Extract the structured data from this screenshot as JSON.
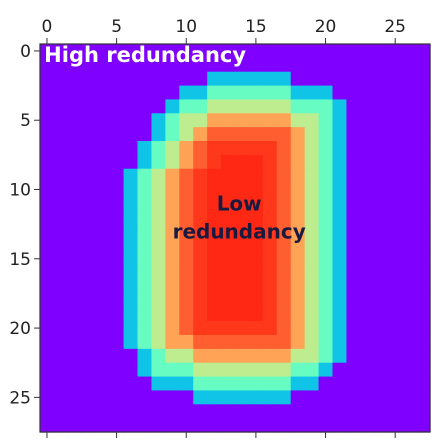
{
  "chart_data": {
    "type": "heatmap",
    "rows": 28,
    "cols": 28,
    "x_ticks": [
      0,
      5,
      10,
      15,
      20,
      25
    ],
    "y_ticks": [
      0,
      5,
      10,
      15,
      20,
      25
    ],
    "x_tick_position": "top",
    "colormap": "rainbow",
    "value_range": [
      0,
      1
    ],
    "background_value": 0,
    "annotations": [
      {
        "text": "High redundancy",
        "row": 0.8,
        "col": -0.2,
        "anchor": "start",
        "color": "#ffffff"
      },
      {
        "lines": [
          "Low",
          "redundancy"
        ],
        "row": 11.5,
        "col": 13.8,
        "anchor": "middle",
        "color": "#1a1a40"
      }
    ],
    "row_profile": [
      {
        "row": 0,
        "left": 0,
        "right": 0
      },
      {
        "row": 1,
        "left": 0,
        "right": 0
      },
      {
        "row": 2,
        "left": 12.5,
        "right": 17.5
      },
      {
        "row": 3,
        "left": 10.5,
        "right": 20.5
      },
      {
        "row": 4,
        "left": 9,
        "right": 21.5
      },
      {
        "row": 5,
        "left": 8.5,
        "right": 22
      },
      {
        "row": 6,
        "left": 8,
        "right": 22
      },
      {
        "row": 7,
        "left": 7.5,
        "right": 22
      },
      {
        "row": 8,
        "left": 7,
        "right": 22
      },
      {
        "row": 9,
        "left": 6.5,
        "right": 22
      },
      {
        "row": 10,
        "left": 6.5,
        "right": 22
      },
      {
        "row": 11,
        "left": 6.5,
        "right": 22
      },
      {
        "row": 12,
        "left": 6.5,
        "right": 22
      },
      {
        "row": 13,
        "left": 6.5,
        "right": 22
      },
      {
        "row": 14,
        "left": 6.5,
        "right": 22
      },
      {
        "row": 15,
        "left": 6.5,
        "right": 22
      },
      {
        "row": 16,
        "left": 6.5,
        "right": 22
      },
      {
        "row": 17,
        "left": 6.5,
        "right": 22
      },
      {
        "row": 18,
        "left": 6.5,
        "right": 22
      },
      {
        "row": 19,
        "left": 6.5,
        "right": 22
      },
      {
        "row": 20,
        "left": 6.5,
        "right": 22
      },
      {
        "row": 21,
        "left": 6.5,
        "right": 22
      },
      {
        "row": 22,
        "left": 7,
        "right": 21.5
      },
      {
        "row": 23,
        "left": 7.5,
        "right": 21
      },
      {
        "row": 24,
        "left": 8.5,
        "right": 20
      },
      {
        "row": 25,
        "left": 11,
        "right": 17.5
      },
      {
        "row": 26,
        "left": 0,
        "right": 0
      },
      {
        "row": 27,
        "left": 0,
        "right": 0
      }
    ]
  }
}
